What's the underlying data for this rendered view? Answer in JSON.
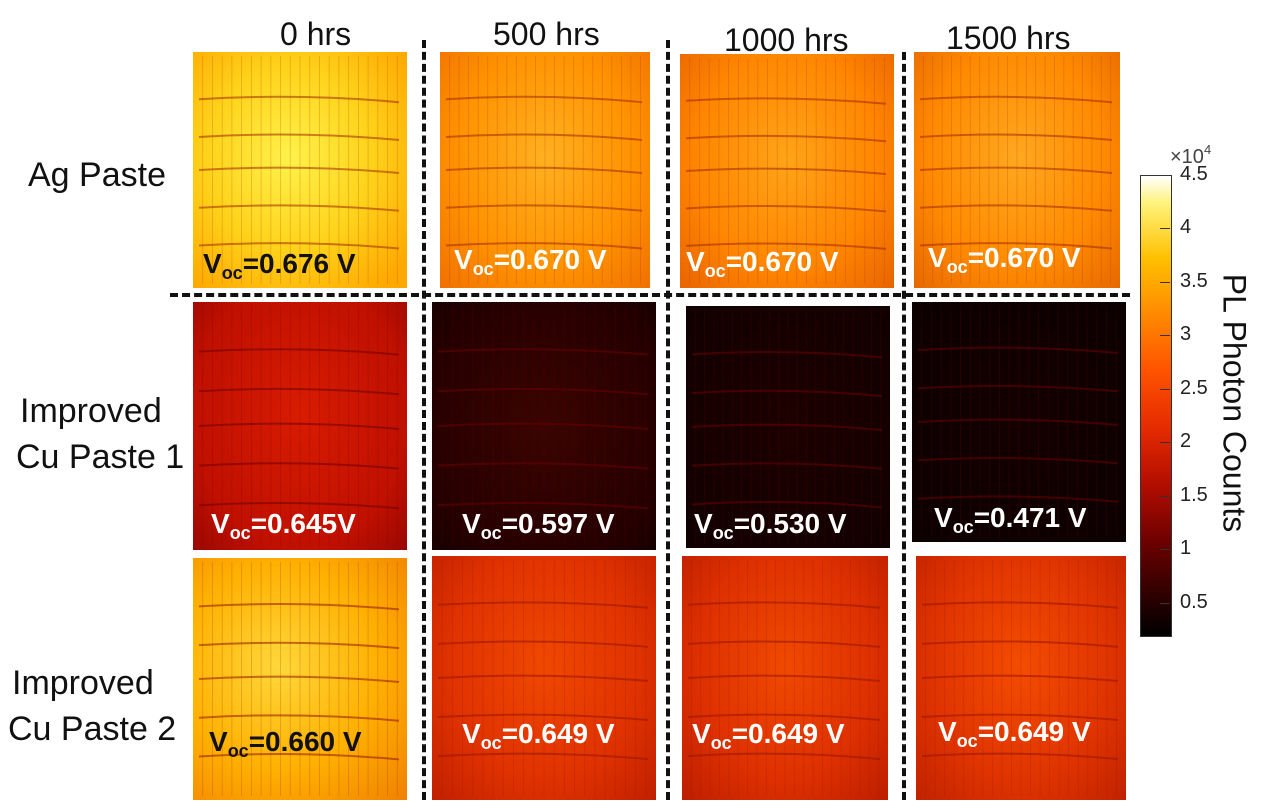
{
  "columns": [
    "0 hrs",
    "500 hrs",
    "1000 hrs",
    "1500 hrs"
  ],
  "rows": [
    {
      "label_lines": [
        "Ag Paste"
      ],
      "voc": [
        {
          "pre": "V",
          "sub": "oc",
          "post": "=0.676 V"
        },
        {
          "pre": "V",
          "sub": "oc",
          "post": "=0.670 V"
        },
        {
          "pre": "V",
          "sub": "oc",
          "post": "=0.670 V"
        },
        {
          "pre": "V",
          "sub": "oc",
          "post": "=0.670 V"
        }
      ]
    },
    {
      "label_lines": [
        "Improved",
        "Cu Paste 1"
      ],
      "voc": [
        {
          "pre": "V",
          "sub": "oc",
          "post": "=0.645V"
        },
        {
          "pre": "V",
          "sub": "oc",
          "post": "=0.597 V"
        },
        {
          "pre": "V",
          "sub": "oc",
          "post": "=0.530 V"
        },
        {
          "pre": "V",
          "sub": "oc",
          "post": "=0.471 V"
        }
      ]
    },
    {
      "label_lines": [
        "Improved",
        "Cu Paste 2"
      ],
      "voc": [
        {
          "pre": "V",
          "sub": "oc",
          "post": "=0.660 V"
        },
        {
          "pre": "V",
          "sub": "oc",
          "post": "=0.649 V"
        },
        {
          "pre": "V",
          "sub": "oc",
          "post": "=0.649 V"
        },
        {
          "pre": "V",
          "sub": "oc",
          "post": "=0.649 V"
        }
      ]
    }
  ],
  "colorbar": {
    "label": "PL Photon Counts",
    "exponent_base": "×10",
    "exponent_power": "4",
    "ticks": [
      "4.5",
      "4",
      "3.5",
      "3",
      "2.5",
      "2",
      "1.5",
      "1",
      "0.5"
    ],
    "min": 0.2,
    "max": 4.5,
    "colors": [
      "#000000",
      "#b30e00",
      "#ff5400",
      "#ffc000",
      "#ffffff"
    ]
  }
}
